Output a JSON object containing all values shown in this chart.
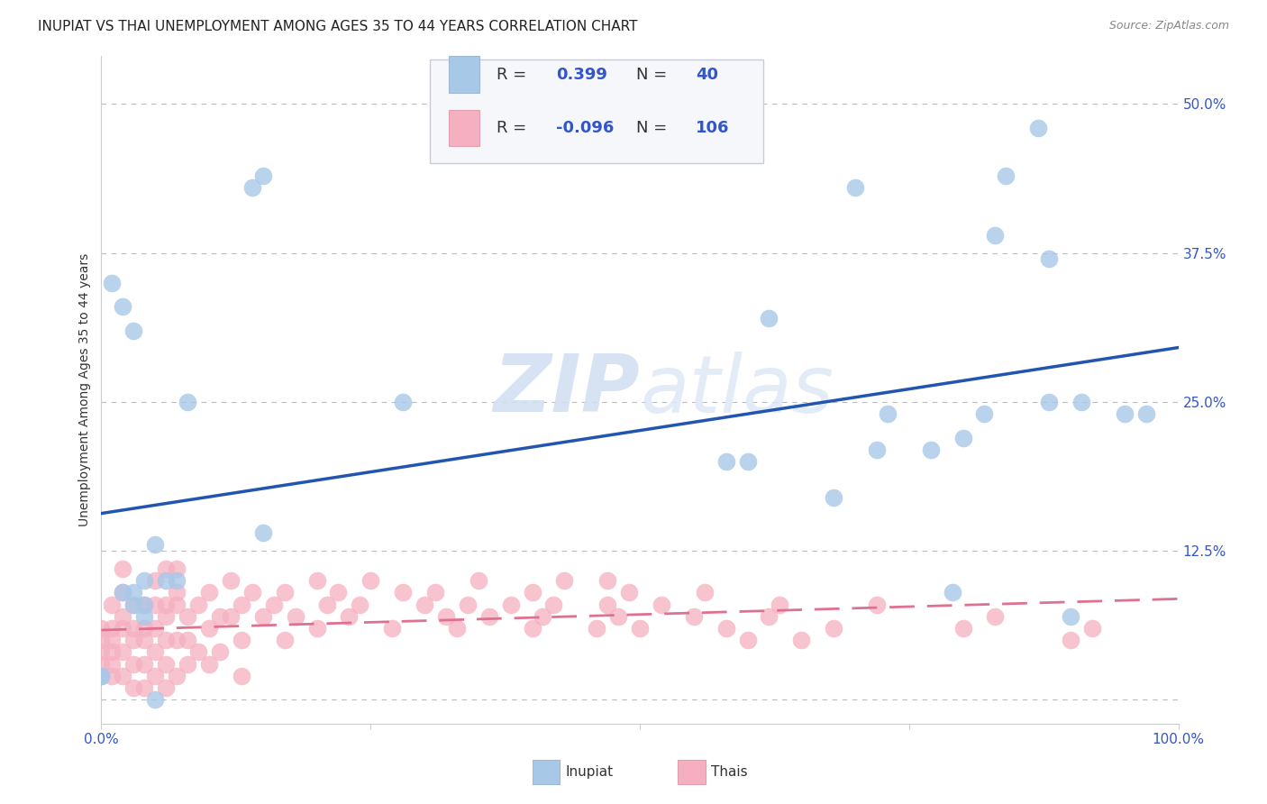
{
  "title": "INUPIAT VS THAI UNEMPLOYMENT AMONG AGES 35 TO 44 YEARS CORRELATION CHART",
  "source": "Source: ZipAtlas.com",
  "ylabel": "Unemployment Among Ages 35 to 44 years",
  "xlim": [
    0.0,
    1.0
  ],
  "ylim": [
    -0.02,
    0.54
  ],
  "inupiat_R": 0.399,
  "inupiat_N": 40,
  "thai_R": -0.096,
  "thai_N": 106,
  "inupiat_color": "#a8c8e8",
  "thai_color": "#f5afc0",
  "inupiat_line_color": "#2255b0",
  "thai_line_color": "#e07090",
  "background_color": "#ffffff",
  "watermark_zip": "ZIP",
  "watermark_atlas": "atlas",
  "grid_color": "#bbbbbb",
  "tick_color": "#3355cc",
  "inupiat_x": [
    0.01,
    0.02,
    0.02,
    0.03,
    0.03,
    0.03,
    0.04,
    0.04,
    0.05,
    0.06,
    0.07,
    0.08,
    0.14,
    0.15,
    0.15,
    0.28,
    0.58,
    0.6,
    0.62,
    0.68,
    0.7,
    0.72,
    0.73,
    0.77,
    0.79,
    0.8,
    0.82,
    0.83,
    0.84,
    0.87,
    0.88,
    0.88,
    0.9,
    0.91,
    0.95,
    0.97,
    0.0,
    0.0,
    0.04,
    0.05
  ],
  "inupiat_y": [
    0.35,
    0.33,
    0.09,
    0.31,
    0.09,
    0.08,
    0.08,
    0.07,
    0.13,
    0.1,
    0.1,
    0.25,
    0.43,
    0.44,
    0.14,
    0.25,
    0.2,
    0.2,
    0.32,
    0.17,
    0.43,
    0.21,
    0.24,
    0.21,
    0.09,
    0.22,
    0.24,
    0.39,
    0.44,
    0.48,
    0.37,
    0.25,
    0.07,
    0.25,
    0.24,
    0.24,
    0.02,
    0.02,
    0.1,
    0.0
  ],
  "thai_x": [
    0.0,
    0.0,
    0.01,
    0.01,
    0.01,
    0.01,
    0.01,
    0.02,
    0.02,
    0.02,
    0.02,
    0.02,
    0.03,
    0.03,
    0.03,
    0.03,
    0.03,
    0.04,
    0.04,
    0.04,
    0.04,
    0.04,
    0.05,
    0.05,
    0.05,
    0.05,
    0.05,
    0.06,
    0.06,
    0.06,
    0.06,
    0.07,
    0.07,
    0.07,
    0.07,
    0.08,
    0.08,
    0.08,
    0.09,
    0.09,
    0.1,
    0.1,
    0.1,
    0.11,
    0.11,
    0.12,
    0.12,
    0.13,
    0.13,
    0.13,
    0.14,
    0.15,
    0.16,
    0.17,
    0.17,
    0.18,
    0.2,
    0.2,
    0.21,
    0.22,
    0.23,
    0.24,
    0.25,
    0.27,
    0.28,
    0.3,
    0.31,
    0.32,
    0.33,
    0.34,
    0.35,
    0.36,
    0.38,
    0.4,
    0.4,
    0.41,
    0.42,
    0.43,
    0.46,
    0.47,
    0.47,
    0.48,
    0.49,
    0.5,
    0.52,
    0.55,
    0.56,
    0.58,
    0.6,
    0.62,
    0.63,
    0.65,
    0.68,
    0.72,
    0.8,
    0.83,
    0.9,
    0.92,
    0.0,
    0.0,
    0.0,
    0.01,
    0.02,
    0.06,
    0.06,
    0.07
  ],
  "thai_y": [
    0.05,
    0.03,
    0.06,
    0.05,
    0.04,
    0.03,
    0.02,
    0.09,
    0.07,
    0.06,
    0.04,
    0.02,
    0.08,
    0.06,
    0.05,
    0.03,
    0.01,
    0.08,
    0.06,
    0.05,
    0.03,
    0.01,
    0.1,
    0.08,
    0.06,
    0.04,
    0.02,
    0.07,
    0.05,
    0.03,
    0.01,
    0.11,
    0.08,
    0.05,
    0.02,
    0.07,
    0.05,
    0.03,
    0.08,
    0.04,
    0.09,
    0.06,
    0.03,
    0.07,
    0.04,
    0.1,
    0.07,
    0.08,
    0.05,
    0.02,
    0.09,
    0.07,
    0.08,
    0.09,
    0.05,
    0.07,
    0.1,
    0.06,
    0.08,
    0.09,
    0.07,
    0.08,
    0.1,
    0.06,
    0.09,
    0.08,
    0.09,
    0.07,
    0.06,
    0.08,
    0.1,
    0.07,
    0.08,
    0.09,
    0.06,
    0.07,
    0.08,
    0.1,
    0.06,
    0.08,
    0.1,
    0.07,
    0.09,
    0.06,
    0.08,
    0.07,
    0.09,
    0.06,
    0.05,
    0.07,
    0.08,
    0.05,
    0.06,
    0.08,
    0.06,
    0.07,
    0.05,
    0.06,
    0.06,
    0.04,
    0.02,
    0.08,
    0.11,
    0.11,
    0.08,
    0.09
  ],
  "yticks": [
    0.0,
    0.125,
    0.25,
    0.375,
    0.5
  ],
  "ytick_labels": [
    "",
    "12.5%",
    "25.0%",
    "37.5%",
    "50.0%"
  ],
  "xticks": [
    0.0,
    0.25,
    0.5,
    0.75,
    1.0
  ],
  "xtick_labels": [
    "0.0%",
    "",
    "",
    "",
    "100.0%"
  ],
  "title_fontsize": 11,
  "axis_label_fontsize": 10,
  "tick_fontsize": 11,
  "legend_fontsize": 13
}
